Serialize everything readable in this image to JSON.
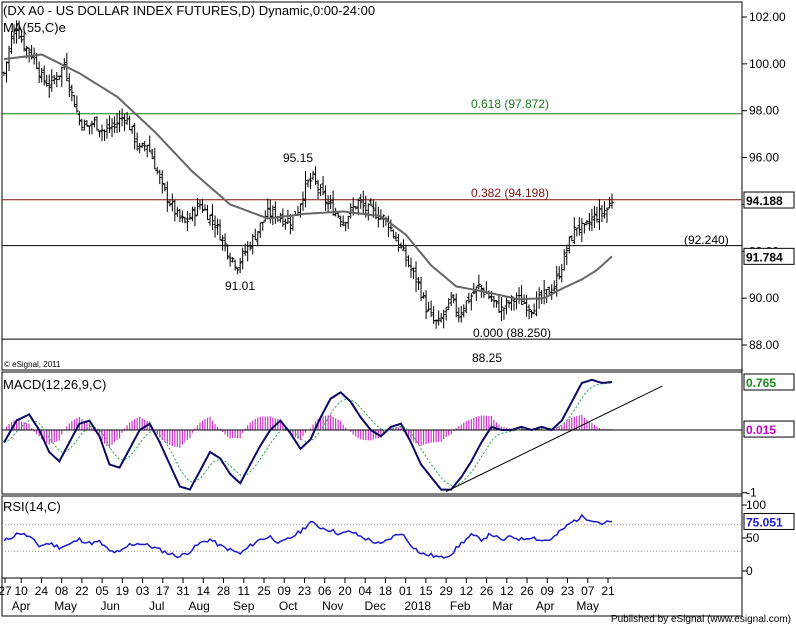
{
  "chart_data": [
    {
      "type": "candlestick",
      "title": "(DX A0 - US DOLLAR INDEX FUTURES,D) Dynamic,0:00-24:00",
      "indicator_label": "MA(55,C)e",
      "watermark": "© eSignal, 2011",
      "ylim": [
        87.2,
        102.8
      ],
      "y_ticks": [
        "102.00",
        "100.00",
        "98.00",
        "96.00",
        "94.00",
        "92.00",
        "90.00",
        "88.00"
      ],
      "last_price": "94.188",
      "ma_value": "91.784",
      "levels": [
        {
          "label": "0.618 (97.872)",
          "value": 97.872,
          "color": "#1a7a1a"
        },
        {
          "label": "0.382 (94.198)",
          "value": 94.198,
          "color": "#7a1010"
        },
        {
          "label": "(92.240)",
          "value": 92.24,
          "color": "#000000"
        },
        {
          "label": "0.000 (88.250)",
          "value": 88.25,
          "color": "#000000"
        }
      ],
      "annotations": [
        {
          "text": "95.15",
          "value": 95.15
        },
        {
          "text": "91.01",
          "value": 91.01
        },
        {
          "text": "88.25",
          "value": 88.25
        }
      ],
      "close_anchors": [
        [
          0,
          99.6
        ],
        [
          3,
          101.1
        ],
        [
          5,
          101.6
        ],
        [
          8,
          100.8
        ],
        [
          12,
          100.3
        ],
        [
          15,
          99.4
        ],
        [
          18,
          99.1
        ],
        [
          22,
          99.6
        ],
        [
          24,
          100.0
        ],
        [
          27,
          98.7
        ],
        [
          30,
          97.6
        ],
        [
          33,
          97.3
        ],
        [
          36,
          97.5
        ],
        [
          40,
          97.1
        ],
        [
          44,
          97.4
        ],
        [
          48,
          97.8
        ],
        [
          51,
          97.1
        ],
        [
          54,
          96.3
        ],
        [
          57,
          96.6
        ],
        [
          60,
          95.7
        ],
        [
          63,
          94.7
        ],
        [
          66,
          94.1
        ],
        [
          69,
          93.5
        ],
        [
          72,
          93.2
        ],
        [
          75,
          93.6
        ],
        [
          78,
          94.0
        ],
        [
          81,
          93.6
        ],
        [
          84,
          93.2
        ],
        [
          87,
          92.5
        ],
        [
          90,
          91.8
        ],
        [
          93,
          91.4
        ],
        [
          96,
          92.0
        ],
        [
          99,
          92.5
        ],
        [
          102,
          93.1
        ],
        [
          105,
          93.6
        ],
        [
          108,
          93.6
        ],
        [
          111,
          93.4
        ],
        [
          114,
          93.3
        ],
        [
          117,
          93.8
        ],
        [
          120,
          94.8
        ],
        [
          123,
          95.1
        ],
        [
          126,
          94.5
        ],
        [
          129,
          94.0
        ],
        [
          132,
          93.7
        ],
        [
          135,
          93.3
        ],
        [
          138,
          93.7
        ],
        [
          141,
          94.1
        ],
        [
          144,
          93.8
        ],
        [
          147,
          93.7
        ],
        [
          150,
          93.5
        ],
        [
          153,
          93.2
        ],
        [
          156,
          92.5
        ],
        [
          159,
          91.9
        ],
        [
          162,
          91.2
        ],
        [
          165,
          90.6
        ],
        [
          168,
          89.6
        ],
        [
          171,
          89.0
        ],
        [
          173,
          88.9
        ],
        [
          175,
          89.3
        ],
        [
          178,
          89.9
        ],
        [
          181,
          89.3
        ],
        [
          183,
          89.7
        ],
        [
          186,
          90.1
        ],
        [
          189,
          90.5
        ],
        [
          192,
          90.2
        ],
        [
          195,
          89.8
        ],
        [
          198,
          89.5
        ],
        [
          201,
          89.8
        ],
        [
          204,
          90.0
        ],
        [
          207,
          89.8
        ],
        [
          210,
          89.6
        ],
        [
          213,
          89.9
        ],
        [
          216,
          90.2
        ],
        [
          219,
          90.5
        ],
        [
          222,
          91.4
        ],
        [
          225,
          92.4
        ],
        [
          228,
          93.1
        ],
        [
          231,
          92.9
        ],
        [
          234,
          93.4
        ],
        [
          237,
          93.6
        ],
        [
          240,
          93.8
        ],
        [
          242,
          94.2
        ]
      ],
      "ma_anchors": [
        [
          0,
          100.2
        ],
        [
          15,
          100.4
        ],
        [
          30,
          99.6
        ],
        [
          45,
          98.6
        ],
        [
          60,
          97.1
        ],
        [
          75,
          95.4
        ],
        [
          90,
          94.0
        ],
        [
          105,
          93.4
        ],
        [
          120,
          93.6
        ],
        [
          135,
          93.7
        ],
        [
          150,
          93.5
        ],
        [
          160,
          92.7
        ],
        [
          170,
          91.4
        ],
        [
          180,
          90.5
        ],
        [
          190,
          90.3
        ],
        [
          205,
          89.95
        ],
        [
          215,
          90.0
        ],
        [
          222,
          90.4
        ],
        [
          230,
          90.8
        ],
        [
          236,
          91.2
        ],
        [
          242,
          91.784
        ]
      ],
      "x_ticks": [
        "27",
        "10",
        "24",
        "08",
        "22",
        "05",
        "19",
        "03",
        "17",
        "31",
        "14",
        "28",
        "11",
        "25",
        "09",
        "23",
        "06",
        "20",
        "04",
        "18",
        "01",
        "15",
        "29",
        "12",
        "26",
        "12",
        "26",
        "09",
        "23",
        "07",
        "21"
      ],
      "x_tick_bars": [
        0,
        8,
        18,
        28,
        38,
        48,
        58,
        68,
        78,
        88,
        98,
        108,
        118,
        128,
        138,
        148,
        158,
        168,
        178,
        188,
        198,
        208,
        218,
        228,
        238,
        248,
        258,
        268,
        278,
        288,
        298
      ],
      "months": [
        {
          "label": "Apr",
          "bar": 5
        },
        {
          "label": "May",
          "bar": 27
        },
        {
          "label": "Jun",
          "bar": 49
        },
        {
          "label": "Jul",
          "bar": 72
        },
        {
          "label": "Aug",
          "bar": 93
        },
        {
          "label": "Sep",
          "bar": 115
        },
        {
          "label": "Oct",
          "bar": 137
        },
        {
          "label": "Nov",
          "bar": 159
        },
        {
          "label": "Dec",
          "bar": 180
        },
        {
          "label": "2018",
          "bar": 201
        },
        {
          "label": "Feb",
          "bar": 222
        },
        {
          "label": "Mar",
          "bar": 243
        },
        {
          "label": "Apr",
          "bar": 264
        },
        {
          "label": "May",
          "bar": 285
        }
      ]
    },
    {
      "type": "line",
      "title": "MACD(12,26,9,C)",
      "ylim": [
        -1.05,
        1.05
      ],
      "y_ticks": [
        "1"
      ],
      "macd_value": "0.765",
      "signal_value": "0.015",
      "macd_anchors": [
        [
          0,
          -0.2
        ],
        [
          5,
          0.15
        ],
        [
          10,
          0.25
        ],
        [
          14,
          0.0
        ],
        [
          18,
          -0.35
        ],
        [
          22,
          -0.5
        ],
        [
          26,
          -0.2
        ],
        [
          30,
          0.1
        ],
        [
          34,
          0.15
        ],
        [
          38,
          -0.1
        ],
        [
          42,
          -0.55
        ],
        [
          46,
          -0.6
        ],
        [
          50,
          -0.3
        ],
        [
          54,
          0.0
        ],
        [
          58,
          0.1
        ],
        [
          62,
          -0.2
        ],
        [
          66,
          -0.55
        ],
        [
          70,
          -0.9
        ],
        [
          74,
          -0.95
        ],
        [
          78,
          -0.65
        ],
        [
          82,
          -0.35
        ],
        [
          86,
          -0.45
        ],
        [
          90,
          -0.7
        ],
        [
          94,
          -0.85
        ],
        [
          98,
          -0.55
        ],
        [
          102,
          -0.25
        ],
        [
          106,
          0.0
        ],
        [
          110,
          0.15
        ],
        [
          114,
          -0.05
        ],
        [
          118,
          -0.3
        ],
        [
          122,
          -0.15
        ],
        [
          126,
          0.2
        ],
        [
          130,
          0.5
        ],
        [
          134,
          0.6
        ],
        [
          138,
          0.45
        ],
        [
          142,
          0.2
        ],
        [
          146,
          0.0
        ],
        [
          150,
          -0.1
        ],
        [
          154,
          0.05
        ],
        [
          158,
          0.1
        ],
        [
          162,
          -0.2
        ],
        [
          166,
          -0.55
        ],
        [
          170,
          -0.75
        ],
        [
          174,
          -0.95
        ],
        [
          178,
          -0.95
        ],
        [
          182,
          -0.75
        ],
        [
          186,
          -0.5
        ],
        [
          190,
          -0.2
        ],
        [
          194,
          0.05
        ],
        [
          198,
          0.0
        ],
        [
          202,
          0.0
        ],
        [
          206,
          0.05
        ],
        [
          210,
          0.0
        ],
        [
          214,
          0.05
        ],
        [
          218,
          0.0
        ],
        [
          222,
          0.15
        ],
        [
          226,
          0.45
        ],
        [
          230,
          0.75
        ],
        [
          234,
          0.8
        ],
        [
          238,
          0.75
        ],
        [
          242,
          0.765
        ]
      ],
      "trendline": [
        [
          176,
          -0.98
        ],
        [
          262,
          0.7
        ]
      ],
      "zero_line": 0.0
    },
    {
      "type": "line",
      "title": "RSI(14,C)",
      "ylim": [
        -5,
        105
      ],
      "y_ticks": [
        "100",
        "50",
        "0"
      ],
      "rsi_value": "75.051",
      "levels": [
        70,
        30
      ],
      "rsi_anchors": [
        [
          0,
          45
        ],
        [
          6,
          58
        ],
        [
          10,
          52
        ],
        [
          14,
          38
        ],
        [
          18,
          42
        ],
        [
          22,
          36
        ],
        [
          26,
          40
        ],
        [
          30,
          48
        ],
        [
          34,
          42
        ],
        [
          38,
          44
        ],
        [
          42,
          30
        ],
        [
          46,
          28
        ],
        [
          50,
          40
        ],
        [
          54,
          42
        ],
        [
          58,
          38
        ],
        [
          62,
          32
        ],
        [
          66,
          26
        ],
        [
          70,
          22
        ],
        [
          74,
          30
        ],
        [
          78,
          42
        ],
        [
          82,
          48
        ],
        [
          86,
          38
        ],
        [
          90,
          32
        ],
        [
          94,
          26
        ],
        [
          98,
          38
        ],
        [
          102,
          48
        ],
        [
          106,
          52
        ],
        [
          110,
          42
        ],
        [
          114,
          50
        ],
        [
          118,
          60
        ],
        [
          122,
          74
        ],
        [
          126,
          66
        ],
        [
          130,
          62
        ],
        [
          134,
          56
        ],
        [
          138,
          60
        ],
        [
          142,
          52
        ],
        [
          146,
          46
        ],
        [
          150,
          40
        ],
        [
          154,
          50
        ],
        [
          158,
          58
        ],
        [
          162,
          40
        ],
        [
          166,
          26
        ],
        [
          170,
          24
        ],
        [
          174,
          20
        ],
        [
          178,
          26
        ],
        [
          182,
          42
        ],
        [
          186,
          54
        ],
        [
          190,
          48
        ],
        [
          194,
          56
        ],
        [
          198,
          46
        ],
        [
          202,
          52
        ],
        [
          206,
          48
        ],
        [
          210,
          52
        ],
        [
          214,
          46
        ],
        [
          218,
          48
        ],
        [
          222,
          62
        ],
        [
          226,
          74
        ],
        [
          230,
          82
        ],
        [
          234,
          78
        ],
        [
          238,
          72
        ],
        [
          242,
          75.051
        ]
      ]
    }
  ],
  "footer": "Published by eSignal (www.esignal.com)"
}
